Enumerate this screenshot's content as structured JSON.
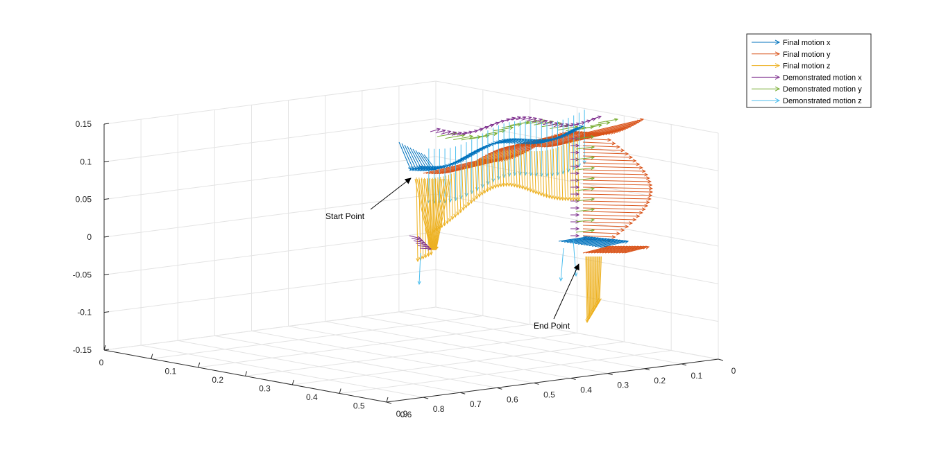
{
  "chart_data": {
    "type": "3d quiver",
    "title": "",
    "xlabel": "",
    "ylabel": "",
    "zlabel": "",
    "grid": true,
    "legend_position": "top-right",
    "axes": {
      "x": {
        "ticks": [
          "0",
          "0.1",
          "0.2",
          "0.3",
          "0.4",
          "0.5",
          "0.6"
        ],
        "range": [
          0,
          0.6
        ]
      },
      "y": {
        "ticks": [
          "0",
          "0.1",
          "0.2",
          "0.3",
          "0.4",
          "0.5",
          "0.6",
          "0.7",
          "0.8",
          "0.9"
        ],
        "range": [
          0,
          0.9
        ]
      },
      "z": {
        "ticks": [
          "-0.15",
          "-0.1",
          "-0.05",
          "0",
          "0.05",
          "0.1",
          "0.15"
        ],
        "range": [
          -0.15,
          0.15
        ]
      }
    },
    "series": [
      {
        "name": "Final motion x",
        "color": "#0072BD"
      },
      {
        "name": "Final motion y",
        "color": "#D95319"
      },
      {
        "name": "Final motion z",
        "color": "#EDB120"
      },
      {
        "name": "Demonstrated motion x",
        "color": "#7E2F8E"
      },
      {
        "name": "Demonstrated motion y",
        "color": "#77AC30"
      },
      {
        "name": "Demonstrated motion z",
        "color": "#4DBEEE"
      }
    ],
    "annotations": [
      {
        "text": "Start Point"
      },
      {
        "text": "End Point"
      }
    ]
  }
}
